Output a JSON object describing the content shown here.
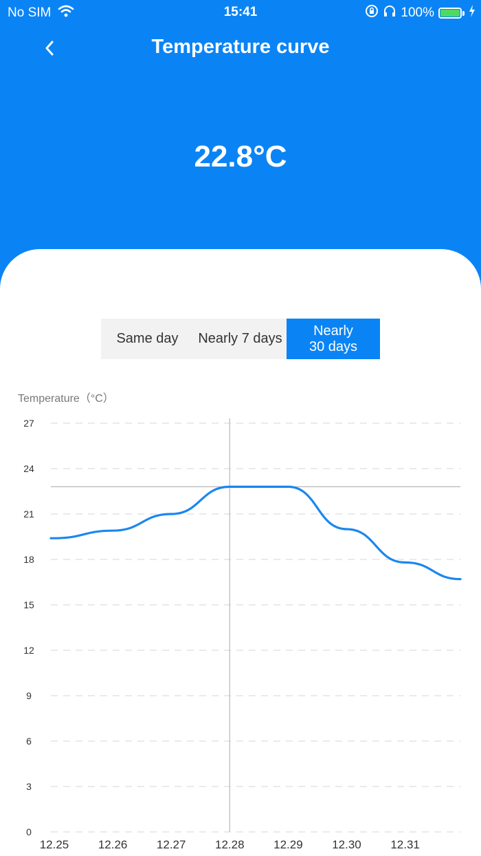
{
  "status_bar": {
    "carrier": "No SIM",
    "time": "15:41",
    "battery": "100%",
    "icons": [
      "wifi-icon",
      "orientation-lock-icon",
      "headphones-icon",
      "battery-icon",
      "charging-icon"
    ]
  },
  "header": {
    "back_icon": "chevron-left-icon",
    "title": "Temperature curve",
    "current_temperature": "22.8°C"
  },
  "tabs": [
    {
      "label": "Same day",
      "active": false
    },
    {
      "label": "Nearly 7 days",
      "active": false
    },
    {
      "label": "Nearly\n30 days",
      "active": true
    }
  ],
  "colors": {
    "accent": "#0a84f5",
    "line": "#1a87f0",
    "segment_bg": "#f2f2f2",
    "grid": "#e3e3e3",
    "cursor": "#b8b8b8"
  },
  "chart_data": {
    "type": "line",
    "ylabel": "Temperature（°C）",
    "ylim": [
      0,
      27
    ],
    "y_ticks": [
      0,
      3,
      6,
      9,
      12,
      15,
      18,
      21,
      24,
      27
    ],
    "categories": [
      "12.25",
      "12.26",
      "12.27",
      "12.28",
      "12.29",
      "12.30",
      "12.31"
    ],
    "series": [
      {
        "values": [
          19.4,
          19.9,
          21.0,
          22.8,
          22.8,
          20.0,
          17.8
        ],
        "end_value": 16.7
      }
    ],
    "crosshair": {
      "x": "12.28",
      "y": 22.8
    },
    "grid": "dashed-horizontal",
    "legend": "none"
  }
}
